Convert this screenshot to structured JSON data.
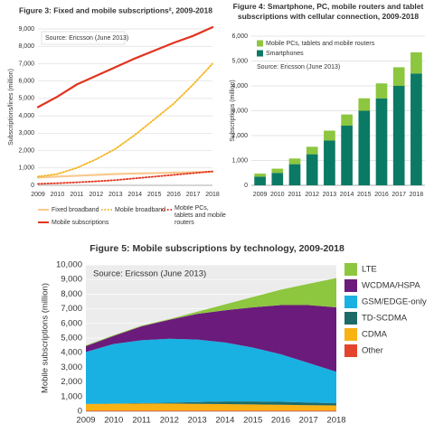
{
  "chart_data": [
    {
      "type": "line",
      "title": "Figure 3: Fixed and mobile subscriptions², 2009-2018",
      "source": "Source: Ericsson (June 2013)",
      "y_label": "Subscriptions/lines (million)",
      "categories": [
        "2009",
        "2010",
        "2011",
        "2012",
        "2013",
        "2014",
        "2015",
        "2016",
        "2017",
        "2018"
      ],
      "ylim": [
        0,
        9000
      ],
      "yticks": [
        0,
        {
          "value": 1000,
          "label": "1,000"
        },
        {
          "value": 2000,
          "label": "2,000"
        },
        {
          "value": 3000,
          "label": "3,000"
        },
        {
          "value": 4000,
          "label": "4,000"
        },
        {
          "value": 5000,
          "label": "5,000"
        },
        {
          "value": 6000,
          "label": "6,000"
        },
        {
          "value": 7000,
          "label": "7,000"
        },
        {
          "value": 8000,
          "label": "8,000"
        },
        {
          "value": 9000,
          "label": "9,000"
        }
      ],
      "grid": true,
      "series": [
        {
          "name": "Fixed broadband",
          "color": "#f8c98e",
          "style": "solid",
          "values": [
            450,
            500,
            550,
            600,
            650,
            680,
            700,
            730,
            750,
            780
          ]
        },
        {
          "name": "Mobile broadband",
          "color": "#f4b41f",
          "style": "dotted",
          "values": [
            500,
            650,
            1000,
            1500,
            2100,
            2900,
            3800,
            4700,
            5800,
            7000
          ]
        },
        {
          "name": "Mobile PCs, tablets and mobile routers",
          "color": "#e1341e",
          "style": "dotted",
          "values": [
            80,
            120,
            170,
            230,
            300,
            400,
            500,
            600,
            700,
            800
          ]
        },
        {
          "name": "Mobile subscriptions",
          "color": "#e1341e",
          "style": "solid",
          "values": [
            4500,
            5100,
            5800,
            6300,
            6800,
            7300,
            7750,
            8200,
            8600,
            9100
          ]
        }
      ]
    },
    {
      "type": "bar",
      "title": "Figure 4: Smartphone, PC, mobile routers and tablet subscriptions with cellular connection, 2009-2018",
      "source": "Source: Ericsson (June 2013)",
      "y_label": "Subscriptions (million)",
      "categories": [
        "2009",
        "2010",
        "2011",
        "2012",
        "2013",
        "2014",
        "2015",
        "2016",
        "2017",
        "2018"
      ],
      "ylim": [
        0,
        6000
      ],
      "yticks": [
        0,
        {
          "value": 1000,
          "label": "1,000"
        },
        {
          "value": 2000,
          "label": "2,000"
        },
        {
          "value": 3000,
          "label": "3,000"
        },
        {
          "value": 4000,
          "label": "4,000"
        },
        {
          "value": 5000,
          "label": "5,000"
        },
        {
          "value": 6000,
          "label": "6,000"
        }
      ],
      "grid": true,
      "stacked": true,
      "series": [
        {
          "name": "Mobile PCs, tablets and mobile routers",
          "color": "#8dc63f",
          "values": [
            120,
            170,
            230,
            300,
            400,
            450,
            500,
            600,
            750,
            850
          ]
        },
        {
          "name": "Smartphones",
          "color": "#0b7a65",
          "values": [
            350,
            500,
            850,
            1250,
            1800,
            2400,
            3000,
            3500,
            4000,
            4500
          ]
        }
      ]
    },
    {
      "type": "area",
      "title": "Figure 5: Mobile subscriptions by technology, 2009-2018",
      "source": "Source: Ericsson (June 2013)",
      "y_label": "Mobile subscriptions (million)",
      "categories": [
        "2009",
        "2010",
        "2011",
        "2012",
        "2013",
        "2014",
        "2015",
        "2016",
        "2017",
        "2018"
      ],
      "ylim": [
        0,
        10000
      ],
      "yticks": [
        0,
        {
          "value": 1000,
          "label": "1,000"
        },
        {
          "value": 2000,
          "label": "2,000"
        },
        {
          "value": 3000,
          "label": "3,000"
        },
        {
          "value": 4000,
          "label": "4,000"
        },
        {
          "value": 5000,
          "label": "5,000"
        },
        {
          "value": 6000,
          "label": "6,000"
        },
        {
          "value": 7000,
          "label": "7,000"
        },
        {
          "value": 8000,
          "label": "8,000"
        },
        {
          "value": 9000,
          "label": "9,000"
        },
        {
          "value": 10000,
          "label": "10,000"
        }
      ],
      "grid": true,
      "stacked": true,
      "series": [
        {
          "name": "LTE",
          "color": "#8dc63f",
          "values": [
            50,
            50,
            50,
            50,
            150,
            400,
            700,
            1050,
            1450,
            2000
          ]
        },
        {
          "name": "WCDMA/HSPA",
          "color": "#6b1b7b",
          "values": [
            400,
            550,
            950,
            1300,
            1750,
            2200,
            2750,
            3350,
            3950,
            4400
          ]
        },
        {
          "name": "GSM/EDGE-only",
          "color": "#19b1e2",
          "values": [
            3550,
            4070,
            4290,
            4360,
            4270,
            4030,
            3680,
            3250,
            2700,
            2150
          ]
        },
        {
          "name": "TD-SCDMA",
          "color": "#1d6b68",
          "values": [
            0,
            10,
            30,
            60,
            120,
            180,
            200,
            200,
            180,
            150
          ]
        },
        {
          "name": "CDMA",
          "color": "#f9b214",
          "values": [
            450,
            470,
            480,
            480,
            460,
            440,
            420,
            400,
            370,
            350
          ]
        },
        {
          "name": "Other",
          "color": "#e2452b",
          "values": [
            50,
            50,
            50,
            50,
            50,
            50,
            50,
            50,
            50,
            50
          ]
        }
      ]
    }
  ]
}
